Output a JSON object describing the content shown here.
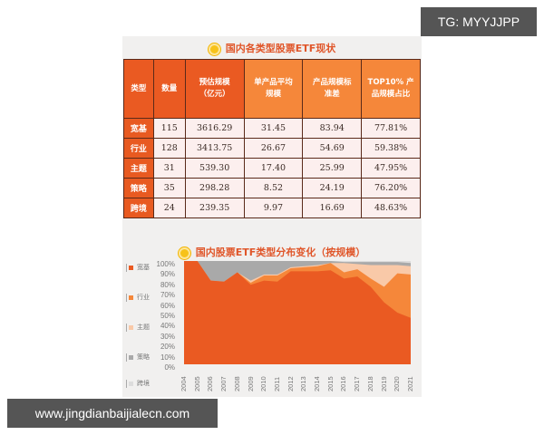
{
  "watermarks": {
    "top_right": "TG: MYYJJPP",
    "bottom_left": "www.jingdianbaijialecn.com"
  },
  "table_section": {
    "title": "国内各类型股票ETF现状",
    "headers": [
      "类型",
      "数量",
      "预估规模\n（亿元）",
      "单产品平均\n规模",
      "产品规模标\n准差",
      "TOP10% 产\n品规模占比"
    ],
    "rows": [
      {
        "type": "宽基",
        "count": "115",
        "scale": "3616.29",
        "avg": "31.45",
        "std": "83.94",
        "top10": "77.81%"
      },
      {
        "type": "行业",
        "count": "128",
        "scale": "3413.75",
        "avg": "26.67",
        "std": "54.69",
        "top10": "59.38%"
      },
      {
        "type": "主题",
        "count": "31",
        "scale": "539.30",
        "avg": "17.40",
        "std": "25.99",
        "top10": "47.95%"
      },
      {
        "type": "策略",
        "count": "35",
        "scale": "298.28",
        "avg": "8.52",
        "std": "24.19",
        "top10": "76.20%"
      },
      {
        "type": "跨境",
        "count": "24",
        "scale": "239.35",
        "avg": "9.97",
        "std": "16.69",
        "top10": "48.63%"
      }
    ]
  },
  "chart_section": {
    "title": "国内股票ETF类型分布变化（按规模）"
  },
  "colors": {
    "broad": "#ea5a22",
    "industry": "#f5873a",
    "theme": "#f9c9a8",
    "strategy": "#a9a9a9",
    "cross": "#dcdcdc",
    "header_dark": "#ea5a22",
    "header_light": "#f5873a",
    "cell_bg": "#fcefee"
  },
  "chart_data": {
    "type": "area",
    "stacked": true,
    "normalized": true,
    "title": "国内股票ETF类型分布变化（按规模）",
    "xlabel": "",
    "ylabel": "",
    "ylim": [
      0,
      100
    ],
    "yticks": [
      "0%",
      "10%",
      "20%",
      "30%",
      "40%",
      "50%",
      "60%",
      "70%",
      "80%",
      "90%",
      "100%"
    ],
    "legend_position": "left",
    "grid": false,
    "x": [
      "2004",
      "2005",
      "2006",
      "2007",
      "2008",
      "2009",
      "2010",
      "2011",
      "2012",
      "2013",
      "2014",
      "2015",
      "2016",
      "2017",
      "2018",
      "2019",
      "2020",
      "2021"
    ],
    "series": [
      {
        "name": "宽基",
        "values": [
          100,
          100,
          81,
          80,
          89,
          77,
          81,
          80,
          90,
          90,
          90,
          91,
          83,
          85,
          75,
          60,
          50,
          45
        ]
      },
      {
        "name": "行业",
        "values": [
          0,
          0,
          0,
          0,
          0,
          2,
          5,
          6,
          3,
          4,
          5,
          7,
          6,
          7,
          8,
          15,
          38,
          42
        ]
      },
      {
        "name": "主题",
        "values": [
          0,
          0,
          0,
          0,
          0,
          2,
          1,
          1,
          1,
          1,
          1,
          0,
          9,
          5,
          13,
          21,
          8,
          8
        ]
      },
      {
        "name": "策略",
        "values": [
          0,
          0,
          19,
          20,
          11,
          19,
          13,
          13,
          6,
          5,
          4,
          2,
          1,
          2,
          3,
          3,
          3,
          3
        ]
      },
      {
        "name": "跨境",
        "values": [
          0,
          0,
          0,
          0,
          0,
          0,
          0,
          0,
          0,
          0,
          0,
          0,
          1,
          1,
          1,
          1,
          1,
          2
        ]
      }
    ]
  }
}
